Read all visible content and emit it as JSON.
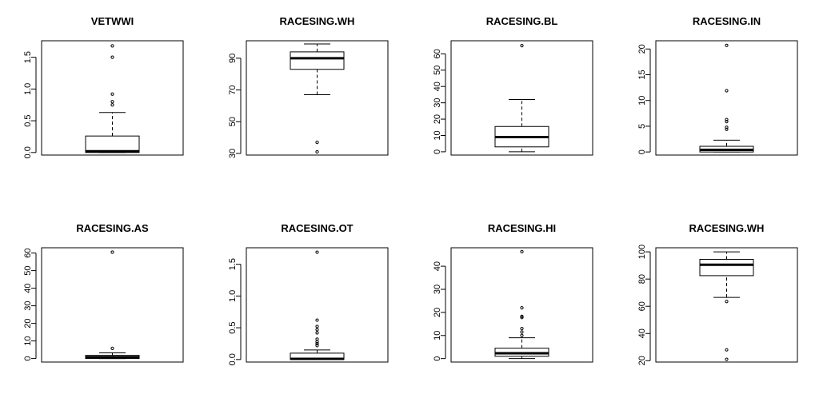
{
  "chart_data": [
    {
      "type": "boxplot",
      "title": "VETWWI",
      "yticks": [
        0.0,
        0.5,
        1.0,
        1.5
      ],
      "ytick_labels": [
        "0.0",
        "0.5",
        "1.0",
        "1.5"
      ],
      "ylim": [
        -0.04,
        1.76
      ],
      "box": {
        "whisker_low": 0.0,
        "q1": 0.0,
        "median": 0.02,
        "q3": 0.26,
        "whisker_high": 0.63
      },
      "outliers": [
        0.75,
        0.8,
        0.92,
        1.5,
        1.68
      ]
    },
    {
      "type": "boxplot",
      "title": "RACESING.WH",
      "yticks": [
        30,
        50,
        70,
        90
      ],
      "ytick_labels": [
        "30",
        "50",
        "70",
        "90"
      ],
      "ylim": [
        29,
        101
      ],
      "box": {
        "whisker_low": 67,
        "q1": 83,
        "median": 90,
        "q3": 94,
        "whisker_high": 99
      },
      "outliers": [
        31,
        37
      ]
    },
    {
      "type": "boxplot",
      "title": "RACESING.BL",
      "yticks": [
        0,
        10,
        20,
        30,
        40,
        50,
        60
      ],
      "ytick_labels": [
        "0",
        "10",
        "20",
        "30",
        "40",
        "50",
        "60"
      ],
      "ylim": [
        -2,
        68
      ],
      "box": {
        "whisker_low": 0,
        "q1": 3,
        "median": 9,
        "q3": 15.5,
        "whisker_high": 32
      },
      "outliers": [
        65
      ]
    },
    {
      "type": "boxplot",
      "title": "RACESING.IN",
      "yticks": [
        0,
        5,
        10,
        15,
        20
      ],
      "ytick_labels": [
        "0",
        "5",
        "10",
        "15",
        "20"
      ],
      "ylim": [
        -0.6,
        21.6
      ],
      "box": {
        "whisker_low": 0,
        "q1": 0,
        "median": 0.4,
        "q3": 1.1,
        "whisker_high": 2.3
      },
      "outliers": [
        4.4,
        4.8,
        5.9,
        6.3,
        11.9,
        20.7
      ]
    },
    {
      "type": "boxplot",
      "title": "RACESING.AS",
      "yticks": [
        0,
        10,
        20,
        30,
        40,
        50,
        60
      ],
      "ytick_labels": [
        "0",
        "10",
        "20",
        "30",
        "40",
        "50",
        "60"
      ],
      "ylim": [
        -2,
        63
      ],
      "box": {
        "whisker_low": 0,
        "q1": 0,
        "median": 0.8,
        "q3": 1.8,
        "whisker_high": 3.2
      },
      "outliers": [
        5.8,
        60.5
      ]
    },
    {
      "type": "boxplot",
      "title": "RACESING.OT",
      "yticks": [
        0.0,
        0.5,
        1.0,
        1.5
      ],
      "ytick_labels": [
        "0.0",
        "0.5",
        "1.0",
        "1.5"
      ],
      "ylim": [
        -0.04,
        1.76
      ],
      "box": {
        "whisker_low": 0.0,
        "q1": 0.0,
        "median": 0.01,
        "q3": 0.1,
        "whisker_high": 0.15
      },
      "outliers": [
        0.22,
        0.25,
        0.28,
        0.32,
        0.42,
        0.47,
        0.52,
        0.62,
        1.69
      ]
    },
    {
      "type": "boxplot",
      "title": "RACESING.HI",
      "yticks": [
        0,
        10,
        20,
        30,
        40
      ],
      "ytick_labels": [
        "0",
        "10",
        "20",
        "30",
        "40"
      ],
      "ylim": [
        -1.5,
        48
      ],
      "box": {
        "whisker_low": 0,
        "q1": 1,
        "median": 2.3,
        "q3": 4.5,
        "whisker_high": 9
      },
      "outliers": [
        10,
        11.5,
        13,
        17.8,
        18.3,
        22,
        46.3
      ]
    },
    {
      "type": "boxplot",
      "title": "RACESING.WH",
      "yticks": [
        20,
        40,
        60,
        80,
        100
      ],
      "ytick_labels": [
        "20",
        "40",
        "60",
        "80",
        "100"
      ],
      "ylim": [
        19,
        103
      ],
      "box": {
        "whisker_low": 66.5,
        "q1": 82.5,
        "median": 90.5,
        "q3": 94.5,
        "whisker_high": 100
      },
      "outliers": [
        21,
        28,
        63.5
      ]
    }
  ]
}
